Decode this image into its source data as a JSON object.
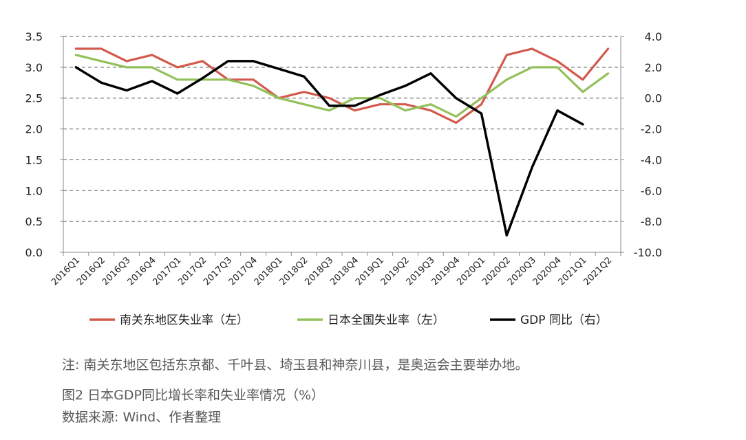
{
  "chart_data": {
    "type": "line",
    "categories": [
      "2016Q1",
      "2016Q2",
      "2016Q3",
      "2016Q4",
      "2017Q1",
      "2017Q2",
      "2017Q3",
      "2017Q4",
      "2018Q1",
      "2018Q2",
      "2018Q3",
      "2018Q4",
      "2019Q1",
      "2019Q2",
      "2019Q3",
      "2019Q4",
      "2020Q1",
      "2020Q2",
      "2020Q3",
      "2020Q4",
      "2021Q1",
      "2021Q2"
    ],
    "y_left": {
      "range": [
        0.0,
        3.5
      ],
      "ticks": [
        "0.0",
        "0.5",
        "1.0",
        "1.5",
        "2.0",
        "2.5",
        "3.0",
        "3.5"
      ]
    },
    "y_right": {
      "range": [
        -10.0,
        4.0
      ],
      "ticks": [
        "-10.0",
        "-8.0",
        "-6.0",
        "-4.0",
        "-2.0",
        "0.0",
        "2.0",
        "4.0"
      ]
    },
    "grid": "dashed horizontal",
    "legend_position": "bottom",
    "series": [
      {
        "name": "南关东地区失业率（左）",
        "axis": "left",
        "color": "#d2594c",
        "values": [
          3.3,
          3.3,
          3.1,
          3.2,
          3.0,
          3.1,
          2.8,
          2.8,
          2.5,
          2.6,
          2.5,
          2.3,
          2.4,
          2.4,
          2.3,
          2.1,
          2.4,
          3.2,
          3.3,
          3.1,
          2.8,
          3.3
        ]
      },
      {
        "name": "日本全国失业率（左）",
        "axis": "left",
        "color": "#92c15a",
        "values": [
          3.2,
          3.1,
          3.0,
          3.0,
          2.8,
          2.8,
          2.8,
          2.7,
          2.5,
          2.4,
          2.3,
          2.5,
          2.5,
          2.3,
          2.4,
          2.2,
          2.5,
          2.8,
          3.0,
          3.0,
          2.6,
          2.9
        ]
      },
      {
        "name": "GDP 同比（右）",
        "axis": "right",
        "color": "#000000",
        "values": [
          2.0,
          1.0,
          0.5,
          1.1,
          0.3,
          1.3,
          2.4,
          2.4,
          1.9,
          1.4,
          -0.5,
          -0.5,
          0.2,
          0.8,
          1.6,
          0.0,
          -1.0,
          -8.9,
          -4.5,
          -0.8,
          -1.7,
          null
        ]
      }
    ]
  },
  "notes": {
    "note": "注: 南关东地区包括东京都、千叶县、埼玉县和神奈川县，是奥运会主要举办地。",
    "figure_title": "图2  日本GDP同比增长率和失业率情况（%）",
    "source": "数据来源: Wind、作者整理"
  }
}
